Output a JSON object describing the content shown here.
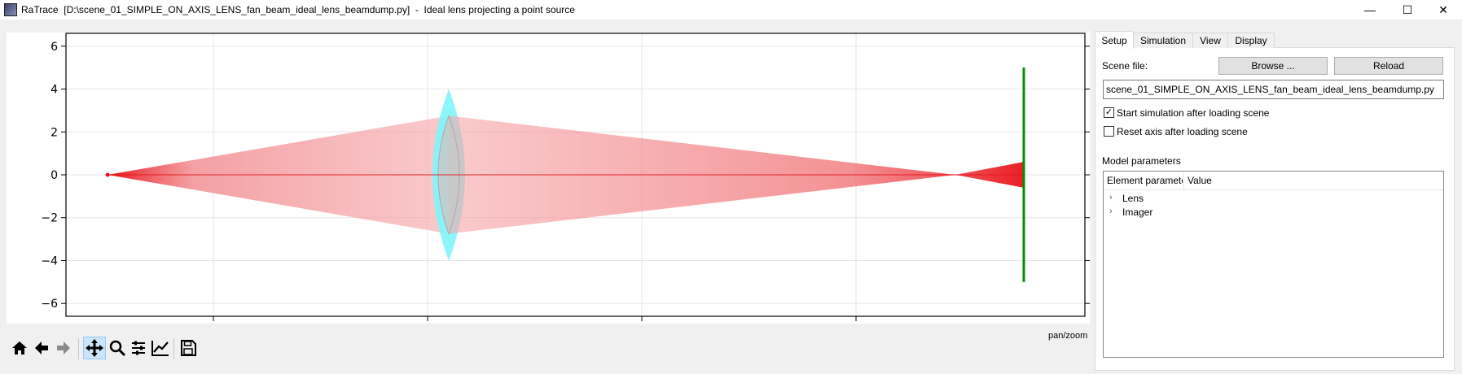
{
  "window": {
    "title": "RaTrace  [D:\\scene_01_SIMPLE_ON_AXIS_LENS_fan_beam_ideal_lens_beamdump.py]  -  Ideal lens projecting a point source",
    "minimize_glyph": "—",
    "maximize_glyph": "☐",
    "close_glyph": "✕"
  },
  "plot": {
    "y_ticks": [
      "6",
      "4",
      "2",
      "0",
      "−2",
      "−4",
      "−6"
    ],
    "y_tick_values": [
      6,
      4,
      2,
      0,
      -2,
      -4,
      -6
    ],
    "ylim": [
      -6.6,
      6.6
    ],
    "grid": true,
    "colors": {
      "ray": "#e8141a",
      "lens": "#7ff5fb",
      "imager": "#0a8a0a"
    }
  },
  "toolbar": {
    "items": [
      {
        "name": "home-icon",
        "active": false
      },
      {
        "name": "back-arrow-icon",
        "active": false
      },
      {
        "name": "forward-arrow-icon",
        "active": false
      },
      {
        "name": "pan-icon",
        "active": true
      },
      {
        "name": "zoom-icon",
        "active": false
      },
      {
        "name": "subplot-config-icon",
        "active": false
      },
      {
        "name": "edit-axis-icon",
        "active": false
      },
      {
        "name": "save-icon",
        "active": false
      }
    ],
    "mode_label": "pan/zoom"
  },
  "panel": {
    "tabs": [
      {
        "label": "Setup",
        "active": true
      },
      {
        "label": "Simulation",
        "active": false
      },
      {
        "label": "View",
        "active": false
      },
      {
        "label": "Display",
        "active": false
      }
    ],
    "scene_file_label": "Scene file:",
    "browse_label": "Browse ...",
    "reload_label": "Reload",
    "scene_file_value": "scene_01_SIMPLE_ON_AXIS_LENS_fan_beam_ideal_lens_beamdump.py",
    "start_sim_label": "Start simulation after loading scene",
    "start_sim_checked": "✓",
    "reset_axis_label": "Reset axis after loading scene",
    "reset_axis_checked": "",
    "model_params_label": "Model parameters",
    "tree_columns": [
      "Element paramete",
      "Value"
    ],
    "tree_items": [
      "Lens",
      "Imager"
    ],
    "expand_glyph": "›"
  }
}
